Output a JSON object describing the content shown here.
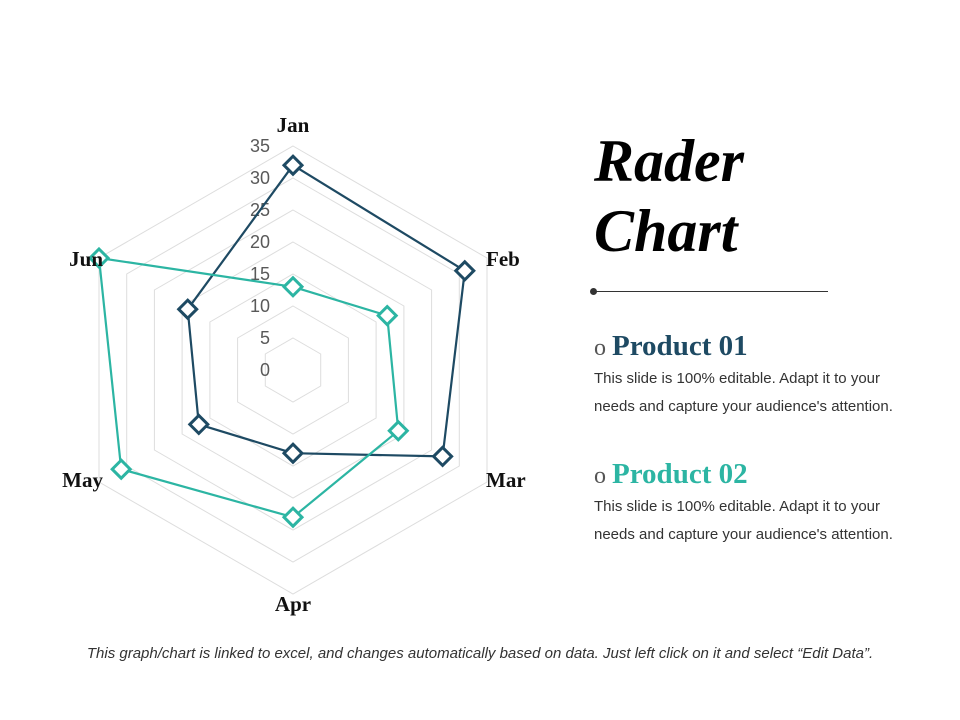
{
  "colors": {
    "product_01": "#1e4a63",
    "product_02": "#2cb5a3",
    "grid": "#dddddd",
    "text": "#111111"
  },
  "chart_data": {
    "type": "radar",
    "categories": [
      "Jan",
      "Feb",
      "Mar",
      "Apr",
      "May",
      "Jun"
    ],
    "rmin": 0,
    "rmax": 35,
    "ticks": [
      "0",
      "5",
      "10",
      "15",
      "20",
      "25",
      "30",
      "35"
    ],
    "grid": true,
    "legend": "right",
    "series": [
      {
        "name": "Product 01",
        "values": [
          32,
          31,
          27,
          13,
          17,
          19
        ]
      },
      {
        "name": "Product 02",
        "values": [
          13,
          17,
          19,
          23,
          31,
          35
        ]
      }
    ]
  },
  "title": {
    "line1": "Rader",
    "line2": "Chart"
  },
  "products": [
    {
      "name": "Product 01",
      "bullet": "o",
      "desc_line1": "This slide is 100% editable. Adapt it to your",
      "desc_line2": "needs and capture your audience's attention."
    },
    {
      "name": "Product 02",
      "bullet": "o",
      "desc_line1": "This slide is 100% editable. Adapt it to your",
      "desc_line2": "needs and capture your audience's attention."
    }
  ],
  "footnote": "This graph/chart is linked to excel, and changes automatically based on data. Just left click on it and select “Edit Data”."
}
